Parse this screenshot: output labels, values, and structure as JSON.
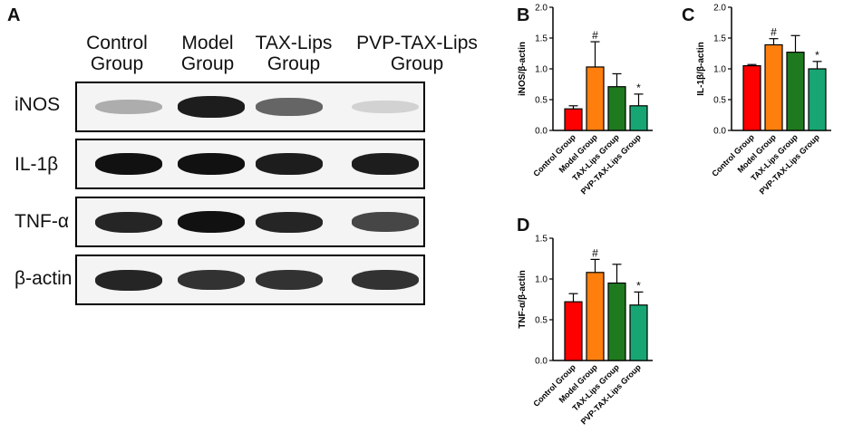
{
  "panels": {
    "a": "A",
    "b": "B",
    "c": "C",
    "d": "D"
  },
  "blot": {
    "headers": [
      {
        "line1": "Control",
        "line2": "Group"
      },
      {
        "line1": "Model",
        "line2": "Group"
      },
      {
        "line1": "TAX-Lips",
        "line2": "Group"
      },
      {
        "line1": "PVP-TAX-Lips",
        "line2": "Group"
      }
    ],
    "rows": [
      {
        "protein": "iNOS",
        "intensity": [
          0.25,
          0.95,
          0.6,
          0.08
        ]
      },
      {
        "protein": "IL-1β",
        "intensity": [
          1,
          1,
          0.95,
          0.95
        ]
      },
      {
        "protein": "TNF-α",
        "intensity": [
          0.9,
          1,
          0.9,
          0.75
        ]
      },
      {
        "protein": "β-actin",
        "intensity": [
          0.9,
          0.85,
          0.85,
          0.85
        ]
      }
    ]
  },
  "colors": {
    "control": "#ff0000",
    "model": "#ff7f0e",
    "tax": "#1f7a1f",
    "pvp": "#17a673"
  },
  "chart_data": [
    {
      "panel": "B",
      "type": "bar",
      "categories": [
        "Control Group",
        "Model Group",
        "TAX-Lips Group",
        "PVP-TAX-Lips Group"
      ],
      "values": [
        0.35,
        1.03,
        0.71,
        0.4
      ],
      "errors": [
        0.05,
        0.41,
        0.21,
        0.19
      ],
      "marks": [
        "",
        "#",
        "",
        "*"
      ],
      "ylabel": "iNOS/β-actin",
      "ylim": [
        0,
        2.0
      ],
      "yticks": [
        "0.0",
        "0.5",
        "1.0",
        "1.5",
        "2.0"
      ]
    },
    {
      "panel": "C",
      "type": "bar",
      "categories": [
        "Control Group",
        "Model Group",
        "TAX-Lips Group",
        "PVP-TAX-Lips Group"
      ],
      "values": [
        1.05,
        1.39,
        1.27,
        1.0
      ],
      "errors": [
        0.02,
        0.1,
        0.27,
        0.12
      ],
      "marks": [
        "",
        "#",
        "",
        "*"
      ],
      "ylabel": "IL-1β/β-actin",
      "ylim": [
        0,
        2.0
      ],
      "yticks": [
        "0.0",
        "0.5",
        "1.0",
        "1.5",
        "2.0"
      ]
    },
    {
      "panel": "D",
      "type": "bar",
      "categories": [
        "Control Group",
        "Model Group",
        "TAX-Lips Group",
        "PVP-TAX-Lips Group"
      ],
      "values": [
        0.72,
        1.08,
        0.95,
        0.68
      ],
      "errors": [
        0.1,
        0.16,
        0.23,
        0.16
      ],
      "marks": [
        "",
        "#",
        "",
        "*"
      ],
      "ylabel": "TNF-α/β-actin",
      "ylim": [
        0,
        1.5
      ],
      "yticks": [
        "0.0",
        "0.5",
        "1.0",
        "1.5"
      ]
    }
  ]
}
